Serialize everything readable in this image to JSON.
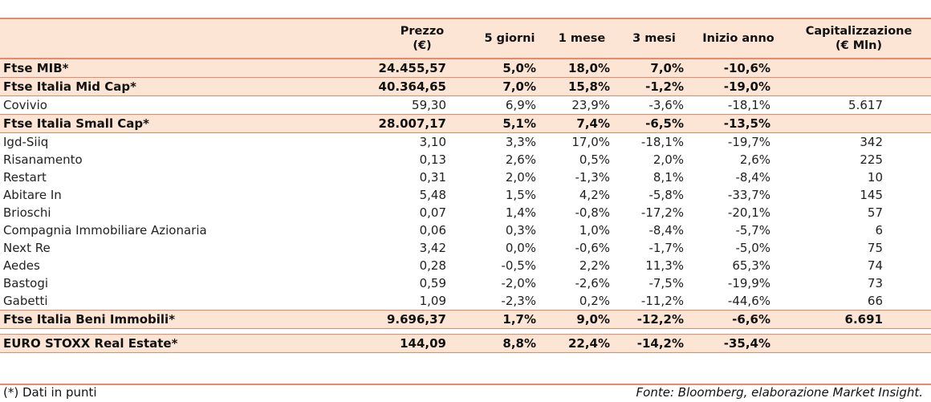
{
  "header": {
    "name": "",
    "price": "Prezzo\n(€)",
    "d5": "5 giorni",
    "m1": "1 mese",
    "m3": "3 mesi",
    "ytd": "Inizio anno",
    "cap": "Capitalizzazione\n(€ Mln)"
  },
  "rows": [
    {
      "type": "index",
      "name": "Ftse MIB*",
      "price": "24.455,57",
      "d5": "5,0%",
      "m1": "18,0%",
      "m3": "7,0%",
      "ytd": "-10,6%",
      "cap": ""
    },
    {
      "type": "index",
      "name": "Ftse Italia Mid Cap*",
      "price": "40.364,65",
      "d5": "7,0%",
      "m1": "15,8%",
      "m3": "-1,2%",
      "ytd": "-19,0%",
      "cap": ""
    },
    {
      "type": "stock",
      "name": "Covivio",
      "price": "59,30",
      "d5": "6,9%",
      "m1": "23,9%",
      "m3": "-3,6%",
      "ytd": "-18,1%",
      "cap": "5.617"
    },
    {
      "type": "index",
      "name": "Ftse Italia Small Cap*",
      "price": "28.007,17",
      "d5": "5,1%",
      "m1": "7,4%",
      "m3": "-6,5%",
      "ytd": "-13,5%",
      "cap": ""
    },
    {
      "type": "stock",
      "name": "Igd-Siiq",
      "price": "3,10",
      "d5": "3,3%",
      "m1": "17,0%",
      "m3": "-18,1%",
      "ytd": "-19,7%",
      "cap": "342"
    },
    {
      "type": "stock",
      "name": "Risanamento",
      "price": "0,13",
      "d5": "2,6%",
      "m1": "0,5%",
      "m3": "2,0%",
      "ytd": "2,6%",
      "cap": "225"
    },
    {
      "type": "stock",
      "name": "Restart",
      "price": "0,31",
      "d5": "2,0%",
      "m1": "-1,3%",
      "m3": "8,1%",
      "ytd": "-8,4%",
      "cap": "10"
    },
    {
      "type": "stock",
      "name": "Abitare In",
      "price": "5,48",
      "d5": "1,5%",
      "m1": "4,2%",
      "m3": "-5,8%",
      "ytd": "-33,7%",
      "cap": "145"
    },
    {
      "type": "stock",
      "name": "Brioschi",
      "price": "0,07",
      "d5": "1,4%",
      "m1": "-0,8%",
      "m3": "-17,2%",
      "ytd": "-20,1%",
      "cap": "57"
    },
    {
      "type": "stock",
      "name": "Compagnia Immobiliare Azionaria",
      "price": "0,06",
      "d5": "0,3%",
      "m1": "1,0%",
      "m3": "-8,4%",
      "ytd": "-5,7%",
      "cap": "6"
    },
    {
      "type": "stock",
      "name": "Next Re",
      "price": "3,42",
      "d5": "0,0%",
      "m1": "-0,6%",
      "m3": "-1,7%",
      "ytd": "-5,0%",
      "cap": "75"
    },
    {
      "type": "stock",
      "name": "Aedes",
      "price": "0,28",
      "d5": "-0,5%",
      "m1": "2,2%",
      "m3": "11,3%",
      "ytd": "65,3%",
      "cap": "74"
    },
    {
      "type": "stock",
      "name": "Bastogi",
      "price": "0,59",
      "d5": "-2,0%",
      "m1": "-2,6%",
      "m3": "-7,5%",
      "ytd": "-19,9%",
      "cap": "73"
    },
    {
      "type": "stock",
      "name": "Gabetti",
      "price": "1,09",
      "d5": "-2,3%",
      "m1": "0,2%",
      "m3": "-11,2%",
      "ytd": "-44,6%",
      "cap": "66"
    },
    {
      "type": "index",
      "name": "Ftse Italia Beni Immobili*",
      "price": "9.696,37",
      "d5": "1,7%",
      "m1": "9,0%",
      "m3": "-12,2%",
      "ytd": "-6,6%",
      "cap": "6.691"
    },
    {
      "type": "gap"
    },
    {
      "type": "index",
      "name": "EURO STOXX Real Estate*",
      "price": "144,09",
      "d5": "8,8%",
      "m1": "22,4%",
      "m3": "-14,2%",
      "ytd": "-35,4%",
      "cap": ""
    }
  ],
  "footnote": "(*) Dati in punti",
  "source": "Fonte: Bloomberg, elaborazione Market Insight."
}
